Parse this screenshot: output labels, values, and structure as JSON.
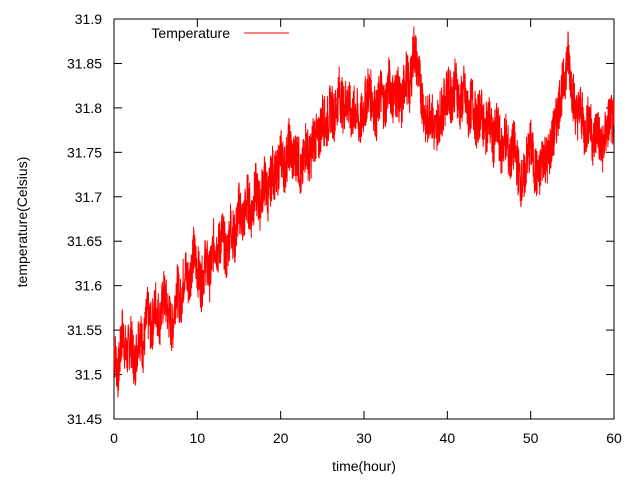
{
  "chart_data": {
    "type": "line",
    "xlabel": "time(hour)",
    "ylabel": "temperature(Celsius)",
    "xlim": [
      0,
      60
    ],
    "ylim": [
      31.45,
      31.9
    ],
    "x_ticks": [
      "0",
      "10",
      "20",
      "30",
      "40",
      "50",
      "60"
    ],
    "y_ticks": [
      "31.45",
      "31.5",
      "31.55",
      "31.6",
      "31.65",
      "31.7",
      "31.75",
      "31.8",
      "31.85",
      "31.9"
    ],
    "grid": false,
    "legend_position": "top-left",
    "series": [
      {
        "name": "Temperature",
        "color": "#ff0000",
        "x": [
          0,
          0.5,
          1,
          1.5,
          2,
          2.5,
          3,
          3.5,
          4,
          4.5,
          5,
          5.5,
          6,
          6.5,
          7,
          7.5,
          8,
          8.5,
          9,
          9.5,
          10,
          10.5,
          11,
          11.5,
          12,
          12.5,
          13,
          13.5,
          14,
          14.5,
          15,
          15.5,
          16,
          16.5,
          17,
          17.5,
          18,
          18.5,
          19,
          19.5,
          20,
          20.5,
          21,
          21.5,
          22,
          22.5,
          23,
          23.5,
          24,
          24.5,
          25,
          25.5,
          26,
          26.5,
          27,
          27.5,
          28,
          28.5,
          29,
          29.5,
          30,
          30.5,
          31,
          31.5,
          32,
          32.5,
          33,
          33.5,
          34,
          34.5,
          35,
          35.5,
          36,
          36.5,
          37,
          37.5,
          38,
          38.5,
          39,
          39.5,
          40,
          40.5,
          41,
          41.5,
          42,
          42.5,
          43,
          43.5,
          44,
          44.5,
          45,
          45.5,
          46,
          46.5,
          47,
          47.5,
          48,
          48.5,
          49,
          49.5,
          50,
          50.5,
          51,
          51.5,
          52,
          52.5,
          53,
          53.5,
          54,
          54.5,
          55,
          55.5,
          56,
          56.5,
          57,
          57.5,
          58,
          58.5,
          59,
          59.5,
          60
        ],
        "y": [
          31.53,
          31.5,
          31.55,
          31.52,
          31.54,
          31.51,
          31.55,
          31.53,
          31.57,
          31.55,
          31.58,
          31.56,
          31.59,
          31.57,
          31.55,
          31.6,
          31.58,
          31.62,
          31.6,
          31.64,
          31.62,
          31.6,
          31.63,
          31.61,
          31.65,
          31.64,
          31.66,
          31.63,
          31.67,
          31.65,
          31.69,
          31.67,
          31.7,
          31.68,
          31.71,
          31.69,
          31.72,
          31.7,
          31.73,
          31.72,
          31.75,
          31.73,
          31.76,
          31.74,
          31.75,
          31.72,
          31.76,
          31.74,
          31.77,
          31.76,
          31.79,
          31.78,
          31.8,
          31.79,
          31.82,
          31.8,
          31.81,
          31.79,
          31.8,
          31.78,
          31.8,
          31.82,
          31.81,
          31.79,
          31.82,
          31.8,
          31.83,
          31.81,
          31.82,
          31.8,
          31.84,
          31.82,
          31.87,
          31.84,
          31.81,
          31.78,
          31.8,
          31.77,
          31.79,
          31.8,
          31.82,
          31.81,
          31.83,
          31.8,
          31.82,
          31.79,
          31.81,
          31.78,
          31.8,
          31.77,
          31.79,
          31.76,
          31.78,
          31.75,
          31.77,
          31.74,
          31.76,
          31.73,
          31.71,
          31.74,
          31.76,
          31.73,
          31.72,
          31.75,
          31.74,
          31.76,
          31.78,
          31.81,
          31.83,
          31.86,
          31.82,
          31.79,
          31.8,
          31.77,
          31.79,
          31.76,
          31.78,
          31.75,
          31.77,
          31.79,
          31.78
        ]
      }
    ]
  }
}
